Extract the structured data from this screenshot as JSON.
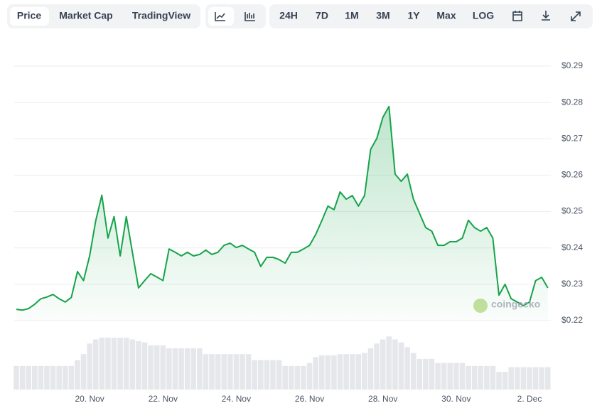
{
  "toolbar": {
    "views": [
      "Price",
      "Market Cap",
      "TradingView"
    ],
    "ranges": [
      "24H",
      "7D",
      "1M",
      "3M",
      "1Y",
      "Max",
      "LOG"
    ]
  },
  "watermark": "coingecko",
  "chart_data": {
    "type": "line",
    "categories": [
      null,
      null,
      null,
      null,
      null,
      null,
      null,
      null,
      null,
      null,
      null,
      null,
      "20. Nov",
      null,
      null,
      null,
      null,
      null,
      null,
      null,
      null,
      null,
      null,
      null,
      "22. Nov",
      null,
      null,
      null,
      null,
      null,
      null,
      null,
      null,
      null,
      null,
      null,
      "24. Nov",
      null,
      null,
      null,
      null,
      null,
      null,
      null,
      null,
      null,
      null,
      null,
      "26. Nov",
      null,
      null,
      null,
      null,
      null,
      null,
      null,
      null,
      null,
      null,
      null,
      "28. Nov",
      null,
      null,
      null,
      null,
      null,
      null,
      null,
      null,
      null,
      null,
      null,
      "30. Nov",
      null,
      null,
      null,
      null,
      null,
      null,
      null,
      null,
      null,
      null,
      null,
      "2. Dec",
      null,
      null,
      null
    ],
    "series": [
      {
        "name": "Price",
        "color": "#16a34a",
        "values": [
          0.2231,
          0.2229,
          0.2233,
          0.2245,
          0.226,
          0.2265,
          0.2272,
          0.226,
          0.2251,
          0.2264,
          0.2335,
          0.231,
          0.2378,
          0.2475,
          0.2545,
          0.2427,
          0.2486,
          0.2378,
          0.2486,
          0.2388,
          0.229,
          0.231,
          0.2329,
          0.232,
          0.231,
          0.2397,
          0.2388,
          0.2378,
          0.2388,
          0.2378,
          0.2382,
          0.2394,
          0.2382,
          0.2388,
          0.2407,
          0.2413,
          0.2401,
          0.2407,
          0.2397,
          0.2388,
          0.2349,
          0.2374,
          0.2374,
          0.2368,
          0.2358,
          0.2388,
          0.2388,
          0.2397,
          0.2407,
          0.2437,
          0.2475,
          0.2515,
          0.2505,
          0.2554,
          0.2534,
          0.2544,
          0.2515,
          0.2544,
          0.2671,
          0.2701,
          0.2759,
          0.2789,
          0.2603,
          0.2583,
          0.2603,
          0.2534,
          0.2495,
          0.2456,
          0.2446,
          0.2407,
          0.2407,
          0.2417,
          0.2417,
          0.2427,
          0.2476,
          0.2456,
          0.2446,
          0.2456,
          0.2427,
          0.227,
          0.23,
          0.226,
          0.2251,
          0.2241,
          0.2251,
          0.231,
          0.2319,
          0.229
        ]
      },
      {
        "name": "Volume",
        "color": "#e5e7eb",
        "axis": "y2",
        "values": [
          40,
          40,
          40,
          40,
          40,
          40,
          40,
          40,
          40,
          40,
          50,
          60,
          78,
          85,
          88,
          88,
          88,
          88,
          88,
          85,
          82,
          80,
          75,
          75,
          75,
          70,
          70,
          70,
          70,
          70,
          70,
          60,
          60,
          60,
          60,
          60,
          60,
          60,
          60,
          50,
          50,
          50,
          50,
          50,
          40,
          40,
          40,
          40,
          45,
          55,
          58,
          58,
          58,
          60,
          60,
          60,
          60,
          62,
          70,
          78,
          85,
          90,
          85,
          80,
          72,
          62,
          52,
          52,
          52,
          45,
          45,
          45,
          45,
          45,
          40,
          40,
          40,
          40,
          40,
          30,
          30,
          38,
          38,
          38,
          38,
          38,
          38,
          38
        ]
      }
    ],
    "ylim": [
      0.22,
      0.29
    ],
    "yticks": [
      {
        "value": 0.22,
        "label": "$0.22"
      },
      {
        "value": 0.23,
        "label": "$0.23"
      },
      {
        "value": 0.24,
        "label": "$0.24"
      },
      {
        "value": 0.25,
        "label": "$0.25"
      },
      {
        "value": 0.26,
        "label": "$0.26"
      },
      {
        "value": 0.27,
        "label": "$0.27"
      },
      {
        "value": 0.28,
        "label": "$0.28"
      },
      {
        "value": 0.29,
        "label": "$0.29"
      }
    ],
    "y2lim": [
      0,
      100
    ],
    "grid": true
  }
}
